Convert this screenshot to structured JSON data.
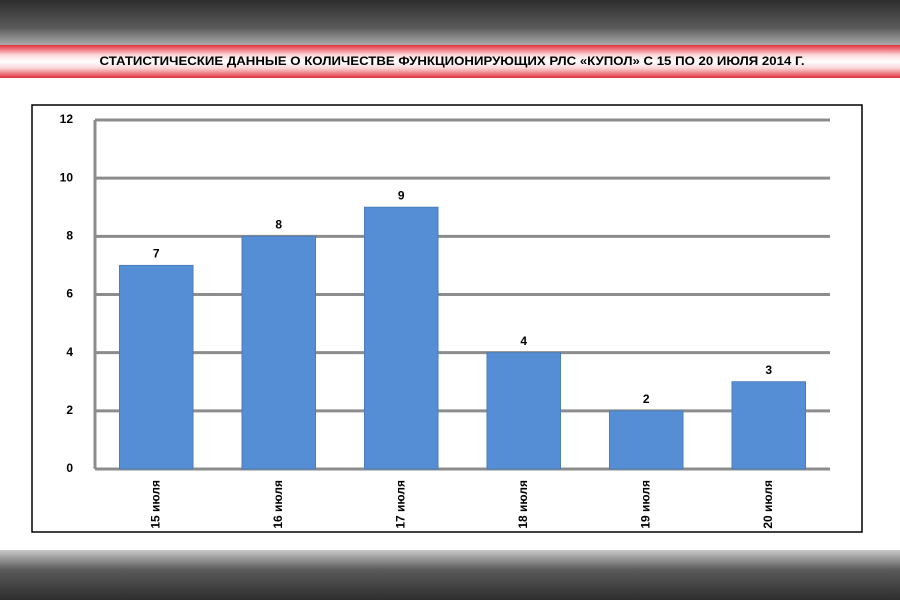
{
  "chart_data": {
    "type": "bar",
    "title": "СТАТИСТИЧЕСКИЕ ДАННЫЕ О КОЛИЧЕСТВЕ ФУНКЦИОНИРУЮЩИХ РЛС «КУПОЛ» С 15 ПО 20 ИЮЛЯ 2014 Г.",
    "categories": [
      "15 июля",
      "16 июля",
      "17 июля",
      "18 июля",
      "19 июля",
      "20 июля"
    ],
    "values": [
      7,
      8,
      9,
      4,
      2,
      3
    ],
    "color": "#558ed5",
    "ylim": [
      0,
      12
    ],
    "yticks": [
      0,
      2,
      4,
      6,
      8,
      10,
      12
    ],
    "grid": true
  }
}
